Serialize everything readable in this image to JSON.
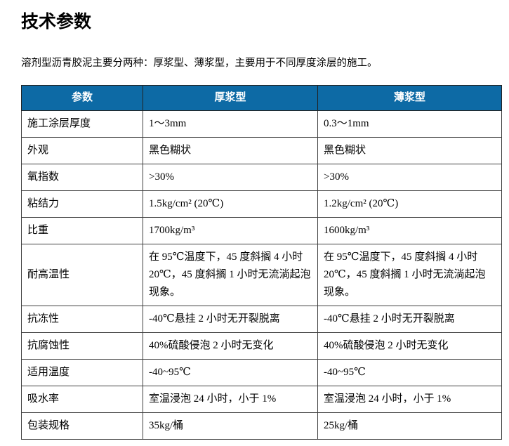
{
  "page": {
    "title": "技术参数",
    "intro": "溶剂型沥青胶泥主要分两种：厚浆型、薄浆型，主要用于不同厚度涂层的施工。"
  },
  "colors": {
    "header_bg": "#0D6AA5",
    "header_text": "#FFFFFF",
    "table_border": "#404040",
    "body_text": "#000000"
  },
  "table": {
    "headers": [
      "参数",
      "厚浆型",
      "薄浆型"
    ],
    "rows": [
      {
        "param": "施工涂层厚度",
        "thick": "1～3mm",
        "thin": "0.3～1mm"
      },
      {
        "param": "外观",
        "thick": "黑色糊状",
        "thin": "黑色糊状"
      },
      {
        "param": "氧指数",
        "thick": ">30%",
        "thin": ">30%"
      },
      {
        "param": "粘结力",
        "thick": "1.5kg/cm² (20℃)",
        "thin": "1.2kg/cm² (20℃)"
      },
      {
        "param": "比重",
        "thick": "1700kg/m³",
        "thin": "1600kg/m³"
      },
      {
        "param": "耐高温性",
        "thick": "在 95℃温度下，45 度斜搁 4 小时 20℃，45 度斜搁 1 小时无流淌起泡现象。",
        "thin": "在 95℃温度下，45 度斜搁 4 小时 20℃，45 度斜搁 1 小时无流淌起泡现象。"
      },
      {
        "param": "抗冻性",
        "thick": "-40℃悬挂 2 小时无开裂脱离",
        "thin": "-40℃悬挂 2 小时无开裂脱离"
      },
      {
        "param": "抗腐蚀性",
        "thick": "40%硫酸侵泡 2 小时无变化",
        "thin": "40%硫酸侵泡 2 小时无变化"
      },
      {
        "param": "适用温度",
        "thick": "-40~95℃",
        "thin": "-40~95℃"
      },
      {
        "param": "吸水率",
        "thick": "室温浸泡 24 小时，小于 1%",
        "thin": "室温浸泡 24 小时，小于 1%"
      },
      {
        "param": "包装规格",
        "thick": "35kg/桶",
        "thin": "25kg/桶"
      }
    ]
  }
}
